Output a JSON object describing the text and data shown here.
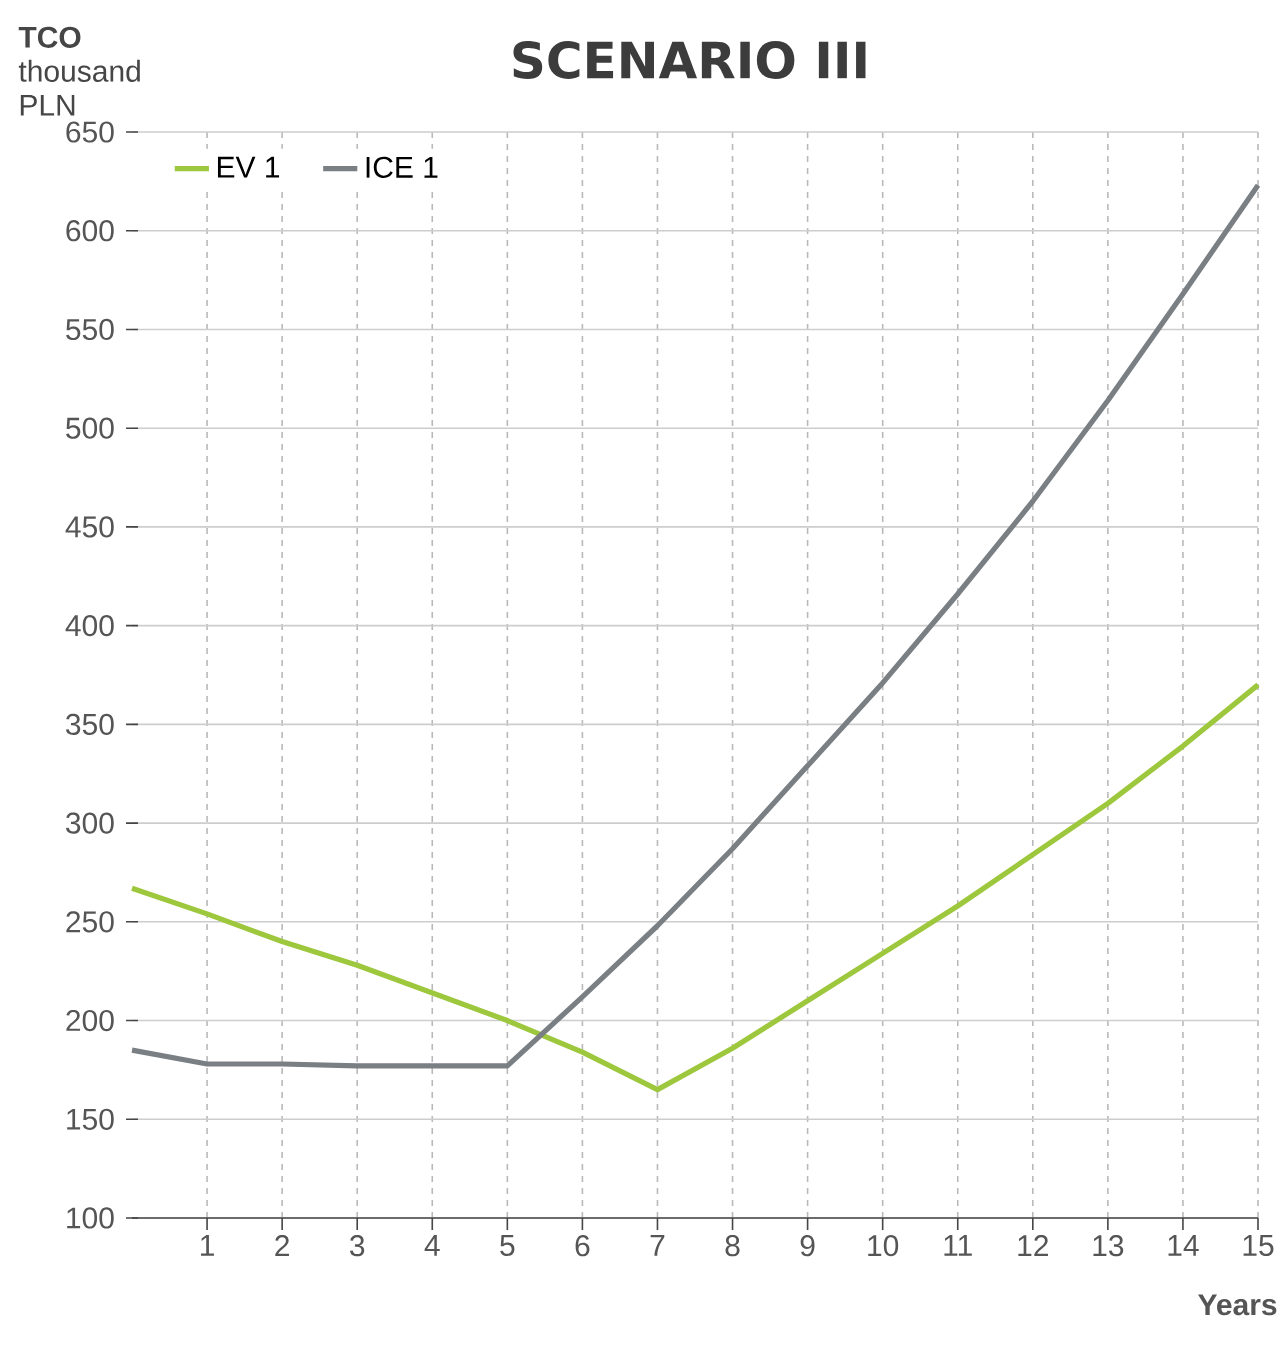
{
  "chart_data": {
    "type": "line",
    "title": "SCENARIO III",
    "ylabel": "**TCO** thousand PLN",
    "xlabel": "Years",
    "x": [
      0,
      1,
      2,
      3,
      4,
      5,
      6,
      7,
      8,
      9,
      10,
      11,
      12,
      13,
      14,
      15
    ],
    "series": [
      {
        "name": "EV 1",
        "color": "#9dc73c",
        "values": [
          267,
          254,
          240,
          228,
          214,
          200,
          184,
          165,
          186,
          210,
          234,
          258,
          284,
          310,
          339,
          370
        ]
      },
      {
        "name": "ICE 1",
        "color": "#7a7f84",
        "values": [
          185,
          178,
          178,
          177,
          177,
          177,
          212,
          248,
          287,
          329,
          371,
          416,
          463,
          514,
          568,
          623
        ]
      }
    ],
    "xlim": [
      0,
      15
    ],
    "xticks": [
      1,
      2,
      3,
      4,
      5,
      6,
      7,
      8,
      9,
      10,
      11,
      12,
      13,
      14,
      15
    ],
    "ylim": [
      100,
      650
    ],
    "yticks": [
      100,
      150,
      200,
      250,
      300,
      350,
      400,
      450,
      500,
      550,
      600,
      650
    ],
    "grid": true,
    "legend": "top left",
    "marker": "none",
    "line_style": "solid"
  }
}
